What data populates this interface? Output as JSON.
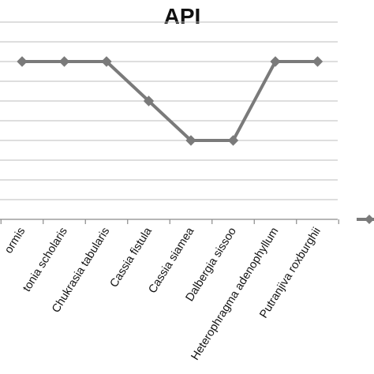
{
  "chart_data": {
    "type": "line",
    "title": "API",
    "categories": [
      "Albizia procera and lebbeck variety formis",
      "Alstonia scholaris",
      "Chukrasia tabularis",
      "Cassia fistula",
      "Cassia siamea",
      "Dalbergia sissoo",
      "Heterophragma adenophyllum",
      "Putranjiva roxburghii"
    ],
    "tick_labels_visible": [
      "ormis",
      "tonia scholaris",
      "Chukrasia tabularis",
      "Cassia fistula",
      "Cassia siamea",
      "Dalbergia sissoo",
      "Heterophragma adenophyllum",
      "Putranjiva roxburghii"
    ],
    "series": [
      {
        "values": [
          8,
          8,
          8,
          6,
          4,
          4,
          8,
          8
        ],
        "color": "#7a7a7a",
        "marker": "diamond"
      }
    ],
    "ylim": [
      0,
      10
    ],
    "y_grid_step": 1,
    "grid": true,
    "legend_position": "right",
    "xlabel": "",
    "ylabel": ""
  }
}
